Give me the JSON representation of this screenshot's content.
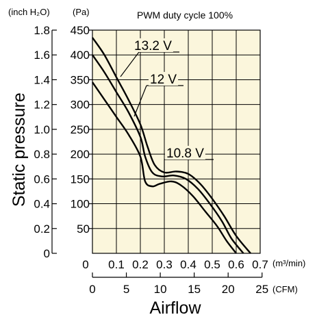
{
  "chart_data": {
    "type": "line",
    "title": "PWM duty cycle 100%",
    "ylabel": "Static pressure",
    "xlabel": "Airflow",
    "y_units": {
      "inch": "(inch H₂O)",
      "pa": "(Pa)"
    },
    "x_units": {
      "m3": "(m³/min)",
      "cfm": "(CFM)"
    },
    "ylim_pa": [
      0,
      450
    ],
    "xlim_m3": [
      0,
      0.7
    ],
    "y_ticks_pa": [
      "50",
      "100",
      "150",
      "200",
      "250",
      "300",
      "350",
      "400",
      "450"
    ],
    "y_ticks_inch": [
      "0",
      "0.2",
      "0.4",
      "0.6",
      "0.8",
      "1.0",
      "1.2",
      "1.4",
      "1.6",
      "1.8"
    ],
    "x_ticks_m3": [
      "0",
      "0.1",
      "0.2",
      "0.3",
      "0.4",
      "0.5",
      "0.6",
      "0.7"
    ],
    "x_ticks_cfm": [
      "0",
      "5",
      "10",
      "15",
      "20",
      "25"
    ],
    "grid": true,
    "series": [
      {
        "name": "13.2 V",
        "x": [
          0,
          0.05,
          0.1,
          0.15,
          0.2,
          0.23,
          0.26,
          0.3,
          0.35,
          0.4,
          0.45,
          0.5,
          0.55,
          0.6,
          0.66
        ],
        "y": [
          435,
          400,
          355,
          310,
          260,
          215,
          178,
          163,
          165,
          160,
          140,
          110,
          75,
          35,
          0
        ]
      },
      {
        "name": "12 V",
        "x": [
          0,
          0.05,
          0.1,
          0.15,
          0.2,
          0.22,
          0.25,
          0.29,
          0.34,
          0.39,
          0.44,
          0.49,
          0.54,
          0.58,
          0.63
        ],
        "y": [
          400,
          365,
          325,
          285,
          235,
          195,
          163,
          155,
          157,
          150,
          130,
          100,
          65,
          30,
          0
        ]
      },
      {
        "name": "10.8 V",
        "x": [
          0,
          0.05,
          0.1,
          0.15,
          0.2,
          0.22,
          0.25,
          0.28,
          0.33,
          0.37,
          0.42,
          0.47,
          0.52,
          0.56,
          0.6
        ],
        "y": [
          345,
          310,
          275,
          240,
          195,
          145,
          135,
          140,
          145,
          137,
          115,
          85,
          55,
          25,
          0
        ]
      }
    ],
    "annotations": [
      {
        "text": "13.2 V",
        "series": "13.2 V"
      },
      {
        "text": "12 V",
        "series": "12 V"
      },
      {
        "text": "10.8 V",
        "series": "10.8 V"
      }
    ],
    "colors": {
      "plot_bg": "#fbf6dc",
      "line": "#000000",
      "grid": "#000000"
    }
  }
}
